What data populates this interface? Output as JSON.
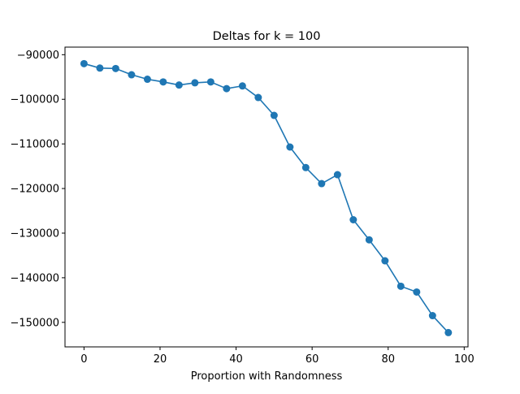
{
  "chart_data": {
    "type": "line",
    "title": "Deltas for k = 100",
    "xlabel": "Proportion with Randomness",
    "ylabel": "",
    "xlim": [
      -5,
      101
    ],
    "ylim": [
      -155500,
      -88300
    ],
    "xticks": [
      0,
      20,
      40,
      60,
      80,
      100
    ],
    "yticks": [
      -150000,
      -140000,
      -130000,
      -120000,
      -110000,
      -100000,
      -90000
    ],
    "xtick_labels": [
      "0",
      "20",
      "40",
      "60",
      "80",
      "100"
    ],
    "ytick_labels": [
      "−150000",
      "−140000",
      "−130000",
      "−120000",
      "−110000",
      "−100000",
      "−90000"
    ],
    "grid": false,
    "legend": null,
    "series": [
      {
        "color": "#1f77b4",
        "marker": "circle",
        "x": [
          0,
          4.17,
          8.33,
          12.5,
          16.67,
          20.83,
          25,
          29.17,
          33.33,
          37.5,
          41.67,
          45.83,
          50,
          54.17,
          58.33,
          62.5,
          66.67,
          70.83,
          75,
          79.17,
          83.33,
          87.5,
          91.67,
          95.83
        ],
        "y": [
          -92000,
          -93000,
          -93100,
          -94500,
          -95500,
          -96100,
          -96800,
          -96300,
          -96100,
          -97600,
          -97000,
          -99600,
          -103600,
          -110700,
          -115300,
          -118900,
          -116900,
          -127000,
          -131500,
          -136200,
          -141900,
          -143200,
          -148500,
          -152300
        ]
      }
    ]
  }
}
